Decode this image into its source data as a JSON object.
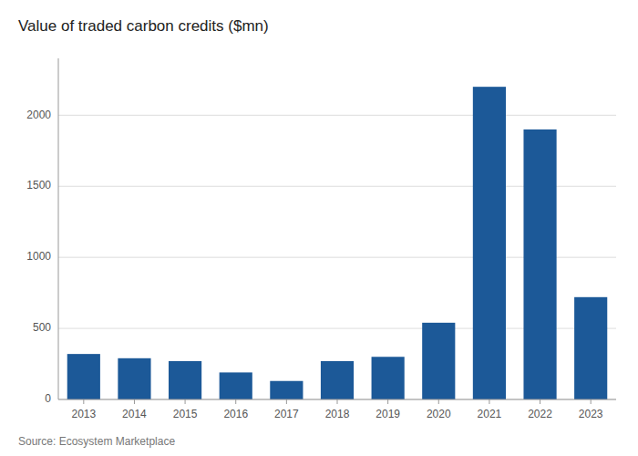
{
  "chart_data": {
    "type": "bar",
    "title": "Value of traded carbon credits ($mn)",
    "source": "Source: Ecosystem Marketplace",
    "categories": [
      "2013",
      "2014",
      "2015",
      "2016",
      "2017",
      "2018",
      "2019",
      "2020",
      "2021",
      "2022",
      "2023"
    ],
    "values": [
      320,
      290,
      270,
      190,
      130,
      270,
      300,
      540,
      2200,
      1900,
      720
    ],
    "color": "#1c5998",
    "ylim": [
      0,
      2400
    ],
    "yticks": [
      0,
      500,
      1000,
      1500,
      2000
    ],
    "grid": true
  }
}
